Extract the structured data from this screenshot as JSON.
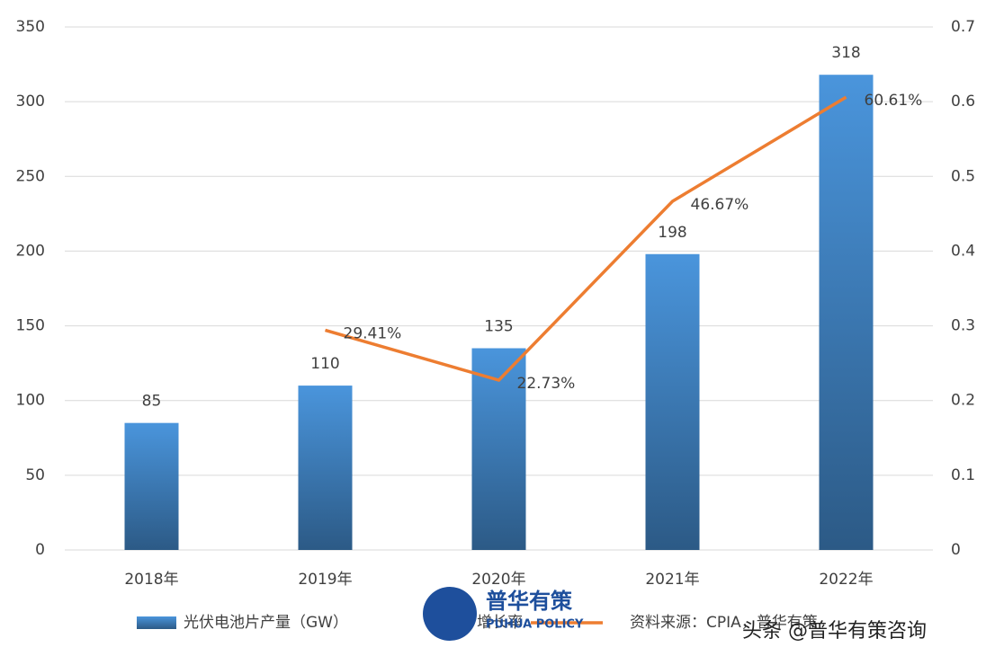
{
  "chart_data": {
    "type": "bar_line",
    "categories": [
      "2018年",
      "2019年",
      "2020年",
      "2021年",
      "2022年"
    ],
    "series": [
      {
        "name": "光伏电池片产量（GW）",
        "type": "bar",
        "color": "#3f86c8",
        "values": [
          85,
          110,
          135,
          198,
          318
        ]
      },
      {
        "name": "增长率",
        "type": "line",
        "axis": "y2",
        "color": "#ed7d31",
        "values": [
          null,
          0.2941,
          0.2273,
          0.4667,
          0.6061
        ],
        "value_labels": [
          null,
          "29.41%",
          "22.73%",
          "46.67%",
          "60.61%"
        ]
      }
    ],
    "ylim": [
      0,
      350
    ],
    "yticks": [
      0,
      50,
      100,
      150,
      200,
      250,
      300,
      350
    ],
    "y2lim": [
      0,
      0.7
    ],
    "y2ticks": [
      0,
      0.1,
      0.2,
      0.3,
      0.4,
      0.5,
      0.6,
      0.7
    ],
    "grid": true,
    "legend": "bottom",
    "source": "资料来源：CPIA，普华有策",
    "watermark": "头条 @普华有策咨询",
    "logo": {
      "name": "普华有策",
      "subtitle": "PUHUA POLICY"
    }
  }
}
